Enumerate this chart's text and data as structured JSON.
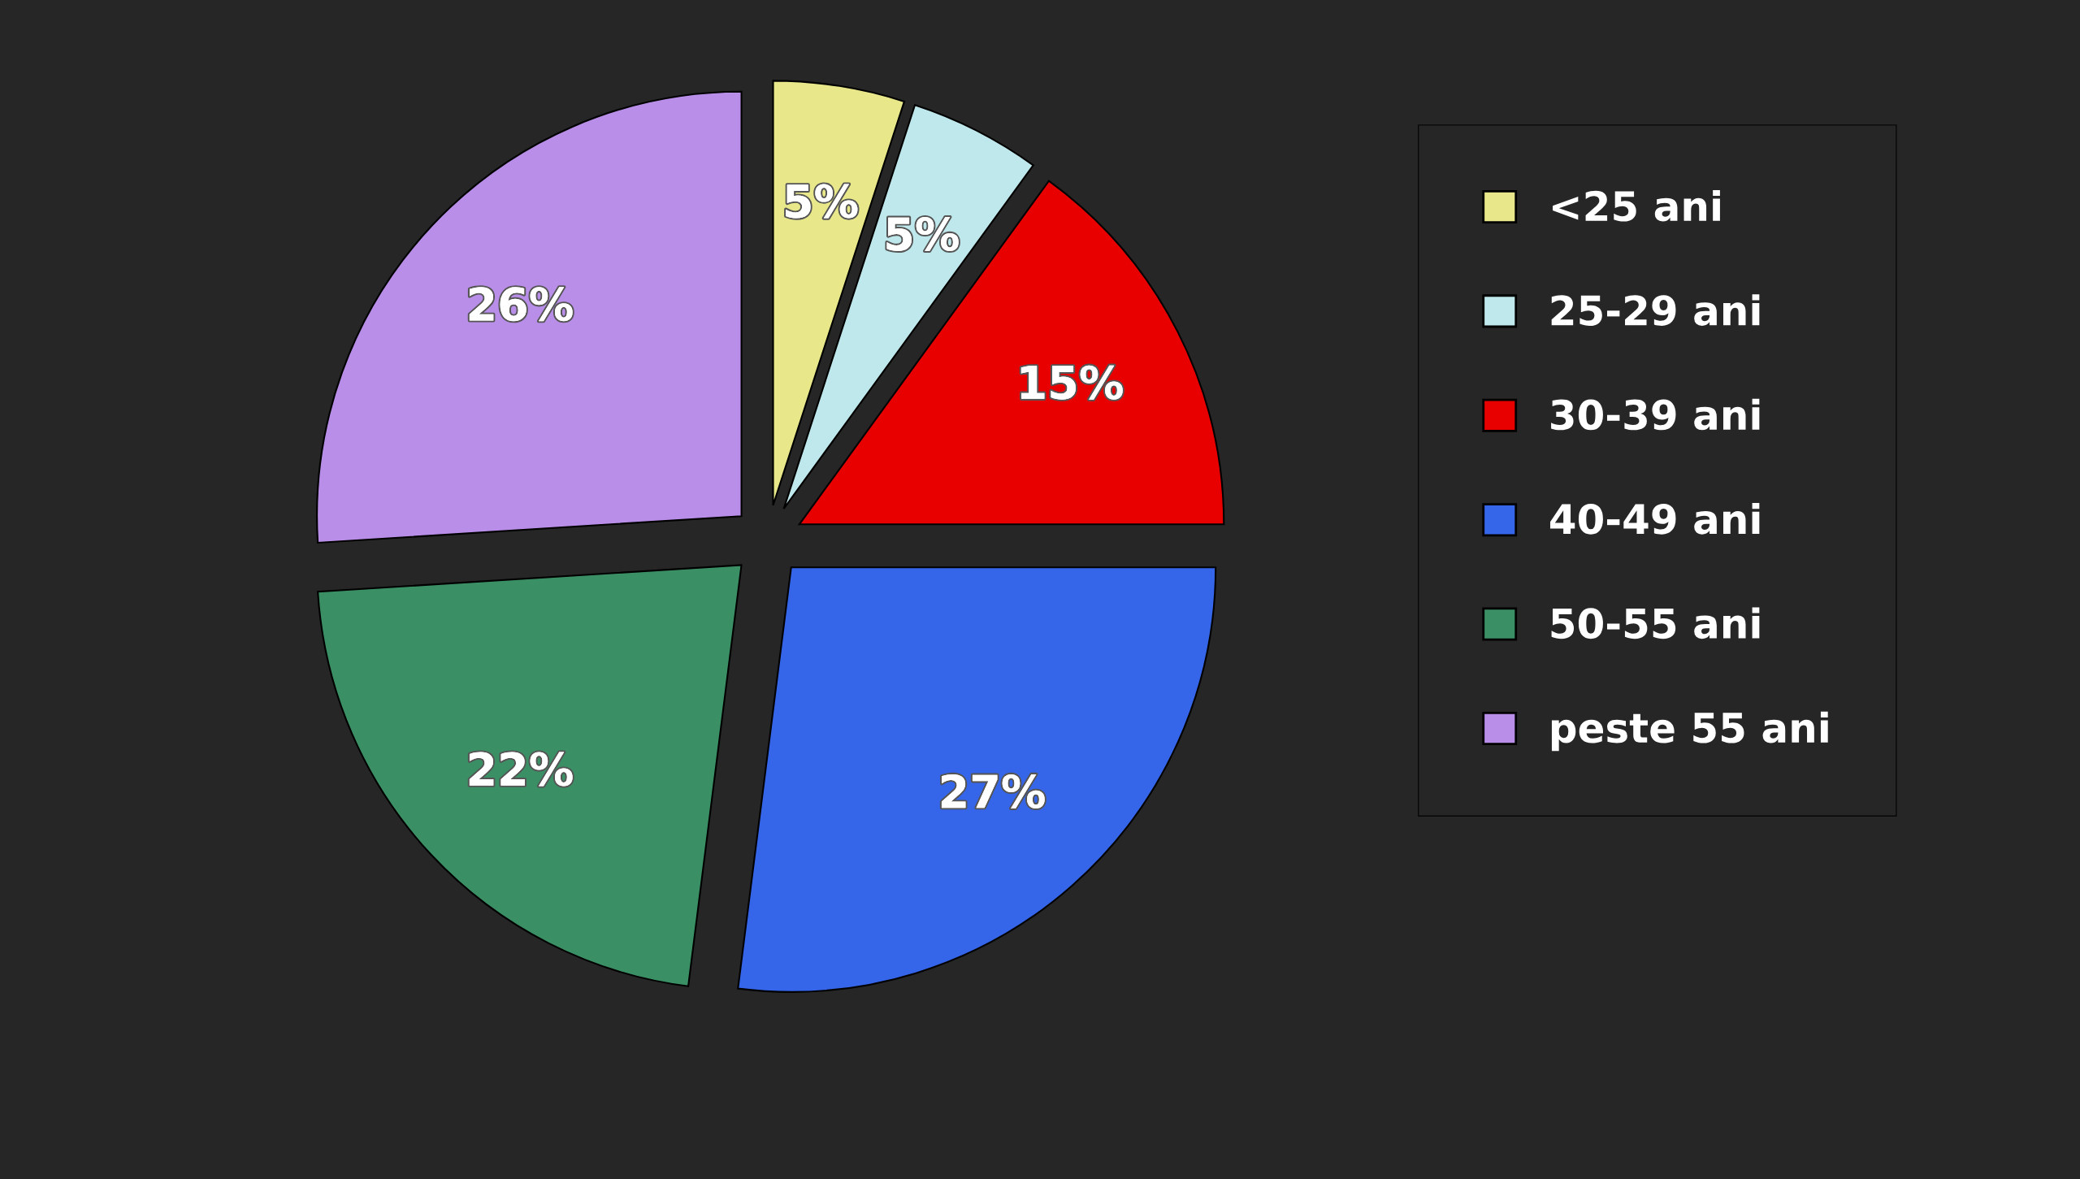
{
  "chart_data": {
    "type": "pie",
    "categories": [
      "<25 ani",
      "25-29 ani",
      "30-39 ani",
      "40-49 ani",
      "50-55 ani",
      "peste 55 ani"
    ],
    "values": [
      5,
      5,
      15,
      27,
      22,
      26
    ],
    "colors": [
      "#e8e88a",
      "#bfe8ec",
      "#e80000",
      "#3565e8",
      "#3a8f65",
      "#b98ee8"
    ],
    "value_labels": [
      "5%",
      "5%",
      "15%",
      "27%",
      "22%",
      "26%"
    ],
    "legend": "right"
  }
}
